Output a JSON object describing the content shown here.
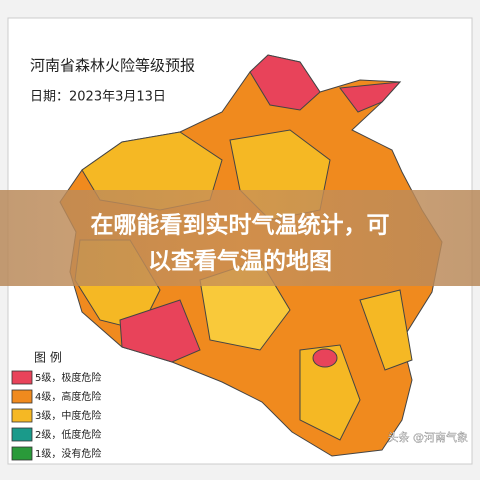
{
  "header": {
    "title": "河南省森林火险等级预报",
    "date": "日期：2023年3月13日"
  },
  "overlay": {
    "lines": [
      "在哪能看到实时气温统计，可",
      "以查看气温的地图"
    ]
  },
  "legend": {
    "title": "图 例",
    "items": [
      "5级，极度危险",
      "4级，高度危险",
      "3级，中度危险",
      "2级，低度危险",
      "1级，没有危险"
    ]
  },
  "watermark": "头条 @河南气象"
}
